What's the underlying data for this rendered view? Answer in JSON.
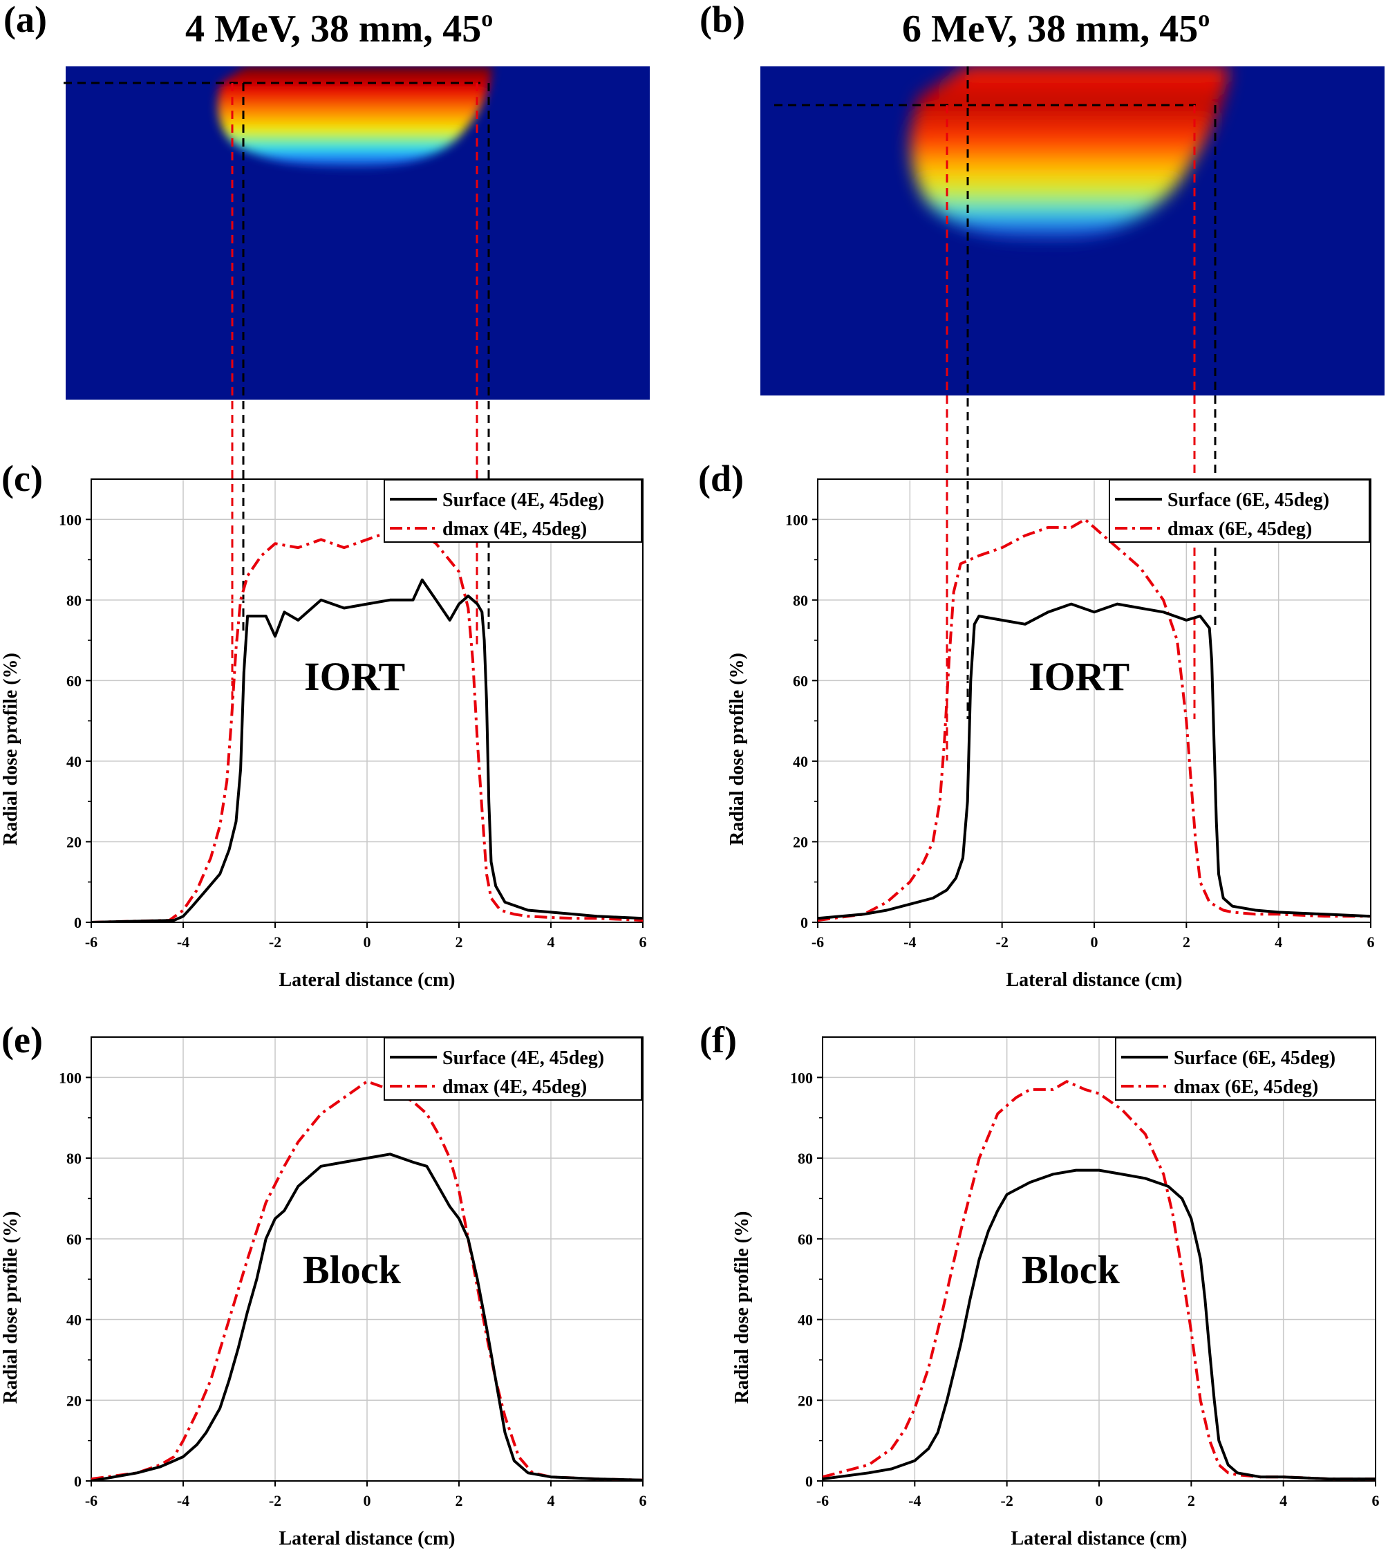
{
  "figure": {
    "heatmaps": [
      {
        "label": "(a)",
        "title_main": "4 MeV, 38 mm, 45",
        "title_sup": "o"
      },
      {
        "label": "(b)",
        "title_main": "6 MeV, 38 mm, 45",
        "title_sup": "o"
      }
    ],
    "colors": {
      "surface": "#000000",
      "dmax": "#e8000b",
      "grid": "#c8c8c8",
      "heat_bg": "#00108c"
    }
  },
  "chart_data": [
    {
      "type": "line",
      "label": "(c)",
      "annotation": "IORT",
      "xlabel": "Lateral distance (cm)",
      "ylabel": "Radial dose profile (%)",
      "xlim": [
        -6,
        6
      ],
      "ylim": [
        0,
        110
      ],
      "xticks": [
        "-6",
        "-4",
        "-2",
        "0",
        "2",
        "4",
        "6"
      ],
      "yticks": [
        "0",
        "20",
        "40",
        "60",
        "80",
        "100"
      ],
      "grid": true,
      "legend": "top-right",
      "series": [
        {
          "name": "Surface (4E, 45deg)",
          "style": "solid",
          "x": [
            -6,
            -4.2,
            -4.0,
            -3.8,
            -3.5,
            -3.2,
            -3.0,
            -2.85,
            -2.75,
            -2.68,
            -2.6,
            -2.5,
            -2.2,
            -2.0,
            -1.8,
            -1.5,
            -1.2,
            -1.0,
            -0.5,
            0,
            0.5,
            1.0,
            1.2,
            1.5,
            1.8,
            2.0,
            2.2,
            2.4,
            2.5,
            2.55,
            2.6,
            2.65,
            2.7,
            2.8,
            3.0,
            3.5,
            4.0,
            4.5,
            5.0,
            6.0
          ],
          "y": [
            0,
            0.5,
            1.5,
            4,
            8,
            12,
            18,
            25,
            38,
            62,
            76,
            76,
            76,
            71,
            77,
            75,
            78,
            80,
            78,
            79,
            80,
            80,
            85,
            80,
            75,
            79,
            81,
            79,
            77,
            70,
            55,
            30,
            15,
            9,
            5,
            3,
            2.5,
            2,
            1.5,
            1
          ]
        },
        {
          "name": "dmax (4E, 45deg)",
          "style": "dashdot",
          "x": [
            -6,
            -4.3,
            -4.0,
            -3.7,
            -3.4,
            -3.2,
            -3.05,
            -2.95,
            -2.85,
            -2.75,
            -2.6,
            -2.3,
            -2.0,
            -1.5,
            -1.0,
            -0.5,
            0,
            0.5,
            1.0,
            1.5,
            2.0,
            2.2,
            2.3,
            2.4,
            2.5,
            2.6,
            2.7,
            2.9,
            3.2,
            3.5,
            4.0,
            4.5,
            5.0,
            6.0
          ],
          "y": [
            0,
            0.5,
            3,
            8,
            16,
            24,
            35,
            50,
            68,
            80,
            86,
            91,
            94,
            93,
            95,
            93,
            95,
            97,
            98,
            94,
            87,
            78,
            65,
            45,
            28,
            12,
            6,
            3,
            2,
            1.5,
            1.2,
            1,
            1,
            0.5
          ]
        }
      ]
    },
    {
      "type": "line",
      "label": "(d)",
      "annotation": "IORT",
      "xlabel": "Lateral distance (cm)",
      "ylabel": "Radial dose profile (%)",
      "xlim": [
        -6,
        6
      ],
      "ylim": [
        0,
        110
      ],
      "xticks": [
        "-6",
        "-4",
        "-2",
        "0",
        "2",
        "4",
        "6"
      ],
      "yticks": [
        "0",
        "20",
        "40",
        "60",
        "80",
        "100"
      ],
      "grid": true,
      "legend": "top-right",
      "series": [
        {
          "name": "Surface (6E, 45deg)",
          "style": "solid",
          "x": [
            -6,
            -5.0,
            -4.5,
            -4.0,
            -3.5,
            -3.2,
            -3.0,
            -2.85,
            -2.75,
            -2.68,
            -2.6,
            -2.5,
            -2.0,
            -1.5,
            -1.0,
            -0.5,
            0,
            0.5,
            1.0,
            1.5,
            2.0,
            2.3,
            2.5,
            2.55,
            2.6,
            2.65,
            2.7,
            2.8,
            3.0,
            3.5,
            4.0,
            5.0,
            6.0
          ],
          "y": [
            1,
            2,
            3,
            4.5,
            6,
            8,
            11,
            16,
            30,
            60,
            74,
            76,
            75,
            74,
            77,
            79,
            77,
            79,
            78,
            77,
            75,
            76,
            73,
            65,
            45,
            25,
            12,
            6,
            4,
            3,
            2.5,
            2,
            1.5
          ]
        },
        {
          "name": "dmax (6E, 45deg)",
          "style": "dashdot",
          "x": [
            -6,
            -5.0,
            -4.5,
            -4.0,
            -3.7,
            -3.5,
            -3.35,
            -3.25,
            -3.15,
            -3.05,
            -2.9,
            -2.5,
            -2.0,
            -1.5,
            -1.0,
            -0.5,
            -0.2,
            0,
            0.5,
            1.0,
            1.5,
            1.8,
            2.0,
            2.1,
            2.2,
            2.3,
            2.5,
            2.8,
            3.0,
            3.5,
            4.0,
            5.0,
            6.0
          ],
          "y": [
            0.5,
            2,
            5,
            10,
            15,
            20,
            30,
            45,
            65,
            82,
            89,
            91,
            93,
            96,
            98,
            98,
            100,
            98,
            93,
            88,
            80,
            70,
            50,
            35,
            20,
            10,
            5,
            3,
            2.5,
            2,
            2,
            1.5,
            1.5
          ]
        }
      ]
    },
    {
      "type": "line",
      "label": "(e)",
      "annotation": "Block",
      "xlabel": "Lateral distance (cm)",
      "ylabel": "Radial dose profile (%)",
      "xlim": [
        -6,
        6
      ],
      "ylim": [
        0,
        110
      ],
      "xticks": [
        "-6",
        "-4",
        "-2",
        "0",
        "2",
        "4",
        "6"
      ],
      "yticks": [
        "0",
        "20",
        "40",
        "60",
        "80",
        "100"
      ],
      "grid": true,
      "legend": "top-right",
      "series": [
        {
          "name": "Surface (4E, 45deg)",
          "style": "solid",
          "x": [
            -6,
            -5.0,
            -4.5,
            -4.0,
            -3.7,
            -3.5,
            -3.2,
            -3.0,
            -2.8,
            -2.6,
            -2.4,
            -2.2,
            -2.0,
            -1.8,
            -1.5,
            -1.2,
            -1.0,
            -0.5,
            0,
            0.5,
            1.0,
            1.3,
            1.5,
            1.8,
            2.0,
            2.2,
            2.4,
            2.6,
            2.8,
            3.0,
            3.2,
            3.5,
            4.0,
            5.0,
            6.0
          ],
          "y": [
            0,
            2,
            3.5,
            6,
            9,
            12,
            18,
            25,
            33,
            42,
            50,
            60,
            65,
            67,
            73,
            76,
            78,
            79,
            80,
            81,
            79,
            78,
            74,
            68,
            65,
            60,
            50,
            38,
            25,
            12,
            5,
            2,
            1,
            0.5,
            0.2
          ]
        },
        {
          "name": "dmax (4E, 45deg)",
          "style": "dashdot",
          "x": [
            -6,
            -5.0,
            -4.5,
            -4.2,
            -4.0,
            -3.7,
            -3.4,
            -3.0,
            -2.6,
            -2.2,
            -1.8,
            -1.5,
            -1.0,
            -0.5,
            0,
            0.5,
            1.0,
            1.3,
            1.6,
            1.8,
            2.0,
            2.2,
            2.4,
            2.6,
            2.8,
            3.0,
            3.3,
            3.6,
            4.0,
            5.0,
            6.0
          ],
          "y": [
            0.5,
            2,
            4,
            6,
            10,
            17,
            25,
            40,
            55,
            69,
            78,
            84,
            91,
            95,
            99,
            97,
            94,
            91,
            85,
            80,
            72,
            60,
            48,
            36,
            25,
            16,
            6,
            2,
            1,
            0.5,
            0.2
          ]
        }
      ]
    },
    {
      "type": "line",
      "label": "(f)",
      "annotation": "Block",
      "xlabel": "Lateral distance (cm)",
      "ylabel": "Radial dose profile (%)",
      "xlim": [
        -6,
        6
      ],
      "ylim": [
        0,
        110
      ],
      "xticks": [
        "-6",
        "-4",
        "-2",
        "0",
        "2",
        "4",
        "6"
      ],
      "yticks": [
        "0",
        "20",
        "40",
        "60",
        "80",
        "100"
      ],
      "grid": true,
      "legend": "top-right",
      "series": [
        {
          "name": "Surface (6E, 45deg)",
          "style": "solid",
          "x": [
            -6,
            -5.0,
            -4.5,
            -4.0,
            -3.7,
            -3.5,
            -3.3,
            -3.0,
            -2.8,
            -2.6,
            -2.4,
            -2.2,
            -2.0,
            -1.5,
            -1.0,
            -0.5,
            0,
            0.5,
            1.0,
            1.5,
            1.8,
            2.0,
            2.2,
            2.3,
            2.4,
            2.5,
            2.6,
            2.8,
            3.0,
            3.5,
            4.0,
            5.0,
            6.0
          ],
          "y": [
            0.5,
            2,
            3,
            5,
            8,
            12,
            20,
            34,
            45,
            55,
            62,
            67,
            71,
            74,
            76,
            77,
            77,
            76,
            75,
            73,
            70,
            65,
            55,
            45,
            32,
            20,
            10,
            4,
            2,
            1,
            1,
            0.5,
            0.5
          ]
        },
        {
          "name": "dmax (6E, 45deg)",
          "style": "dashdot",
          "x": [
            -6,
            -5.0,
            -4.5,
            -4.2,
            -4.0,
            -3.7,
            -3.4,
            -3.0,
            -2.6,
            -2.2,
            -1.8,
            -1.5,
            -1.0,
            -0.7,
            -0.3,
            0,
            0.5,
            1.0,
            1.4,
            1.6,
            1.8,
            2.0,
            2.2,
            2.4,
            2.6,
            2.8,
            3.0,
            3.5,
            4.0,
            5.0,
            6.0
          ],
          "y": [
            1,
            4,
            8,
            13,
            18,
            28,
            42,
            62,
            80,
            91,
            95,
            97,
            97,
            99,
            97,
            96,
            92,
            86,
            76,
            66,
            52,
            37,
            20,
            10,
            4,
            2,
            1.5,
            1,
            1,
            0.5,
            0.5
          ]
        }
      ]
    }
  ]
}
